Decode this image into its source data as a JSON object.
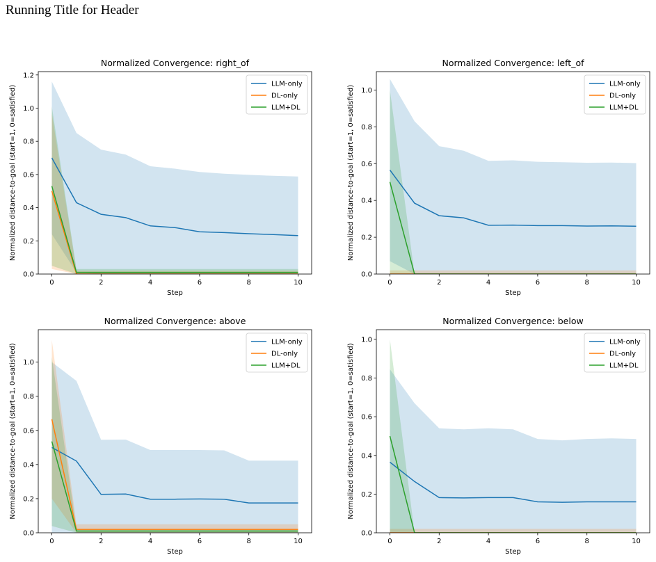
{
  "running_title": "Running Title for Header",
  "colors": {
    "LLM-only": "#1f77b4",
    "DL-only": "#ff7f0e",
    "LLM+DL": "#2ca02c"
  },
  "chart_data": [
    {
      "type": "line",
      "title": "Normalized Convergence: right_of",
      "xlabel": "Step",
      "ylabel": "Normalized distance-to-goal (start=1, 0=satisfied)",
      "xlim": [
        -0.55,
        10.55
      ],
      "ylim": [
        0,
        1.22
      ],
      "xticks": [
        0,
        2,
        4,
        6,
        8,
        10
      ],
      "xtick_labels": [
        "0",
        "2",
        "4",
        "6",
        "8",
        "10"
      ],
      "yticks": [
        0.0,
        0.2,
        0.4,
        0.6,
        0.8,
        1.0,
        1.2
      ],
      "ytick_labels": [
        "0.0",
        "0.2",
        "0.4",
        "0.6",
        "0.8",
        "1.0",
        "1.2"
      ],
      "legend": "upper-right",
      "x": [
        0,
        1,
        2,
        3,
        4,
        5,
        6,
        7,
        8,
        9,
        10
      ],
      "series": [
        {
          "name": "LLM-only",
          "values": [
            0.7,
            0.43,
            0.36,
            0.34,
            0.29,
            0.28,
            0.255,
            0.25,
            0.243,
            0.238,
            0.232
          ],
          "lower": [
            0.24,
            0.01,
            0.0,
            0.0,
            0.0,
            0.0,
            0.0,
            0.0,
            0.0,
            0.0,
            0.0
          ],
          "upper": [
            1.16,
            0.85,
            0.75,
            0.72,
            0.65,
            0.635,
            0.615,
            0.605,
            0.598,
            0.592,
            0.588
          ]
        },
        {
          "name": "DL-only",
          "values": [
            0.5,
            0.0,
            0.0,
            0.0,
            0.0,
            0.0,
            0.0,
            0.0,
            0.0,
            0.0,
            0.0
          ],
          "lower": [
            0.03,
            0.0,
            0.0,
            0.0,
            0.0,
            0.0,
            0.0,
            0.0,
            0.0,
            0.0,
            0.0
          ],
          "upper": [
            0.97,
            0.02,
            0.02,
            0.02,
            0.02,
            0.02,
            0.02,
            0.02,
            0.02,
            0.02,
            0.02
          ]
        },
        {
          "name": "LLM+DL",
          "values": [
            0.53,
            0.01,
            0.01,
            0.01,
            0.01,
            0.01,
            0.01,
            0.01,
            0.01,
            0.01,
            0.01
          ],
          "lower": [
            0.05,
            0.0,
            0.0,
            0.0,
            0.0,
            0.0,
            0.0,
            0.0,
            0.0,
            0.0,
            0.0
          ],
          "upper": [
            1.01,
            0.03,
            0.03,
            0.03,
            0.03,
            0.03,
            0.03,
            0.03,
            0.03,
            0.03,
            0.03
          ]
        }
      ]
    },
    {
      "type": "line",
      "title": "Normalized Convergence: left_of",
      "xlabel": "Step",
      "ylabel": "Normalized distance-to-goal (start=1, 0=satisfied)",
      "xlim": [
        -0.55,
        10.55
      ],
      "ylim": [
        0,
        1.1
      ],
      "xticks": [
        0,
        2,
        4,
        6,
        8,
        10
      ],
      "xtick_labels": [
        "0",
        "2",
        "4",
        "6",
        "8",
        "10"
      ],
      "yticks": [
        0.0,
        0.2,
        0.4,
        0.6,
        0.8,
        1.0
      ],
      "ytick_labels": [
        "0.0",
        "0.2",
        "0.4",
        "0.6",
        "0.8",
        "1.0"
      ],
      "legend": "upper-right",
      "x": [
        0,
        1,
        2,
        3,
        4,
        5,
        6,
        7,
        8,
        9,
        10
      ],
      "series": [
        {
          "name": "LLM-only",
          "values": [
            0.565,
            0.385,
            0.317,
            0.305,
            0.265,
            0.266,
            0.263,
            0.263,
            0.261,
            0.262,
            0.26
          ],
          "lower": [
            0.07,
            0.0,
            0.0,
            0.0,
            0.0,
            0.0,
            0.0,
            0.0,
            0.0,
            0.0,
            0.0
          ],
          "upper": [
            1.06,
            0.83,
            0.695,
            0.67,
            0.615,
            0.618,
            0.61,
            0.608,
            0.605,
            0.606,
            0.603
          ]
        },
        {
          "name": "DL-only",
          "values": [
            0.0,
            0.0,
            0.0,
            0.0,
            0.0,
            0.0,
            0.0,
            0.0,
            0.0,
            0.0,
            0.0
          ],
          "lower": [
            0.0,
            0.0,
            0.0,
            0.0,
            0.0,
            0.0,
            0.0,
            0.0,
            0.0,
            0.0,
            0.0
          ],
          "upper": [
            0.02,
            0.02,
            0.02,
            0.02,
            0.02,
            0.02,
            0.02,
            0.02,
            0.02,
            0.02,
            0.02
          ]
        },
        {
          "name": "LLM+DL",
          "values": [
            0.5,
            0.0,
            0.0,
            0.0,
            0.0,
            0.0,
            0.0,
            0.0,
            0.0,
            0.0,
            0.0
          ],
          "lower": [
            0.0,
            0.0,
            0.0,
            0.0,
            0.0,
            0.0,
            0.0,
            0.0,
            0.0,
            0.0,
            0.0
          ],
          "upper": [
            1.0,
            0.0,
            0.0,
            0.0,
            0.0,
            0.0,
            0.0,
            0.0,
            0.0,
            0.0,
            0.0
          ]
        }
      ]
    },
    {
      "type": "line",
      "title": "Normalized Convergence: above",
      "xlabel": "Step",
      "ylabel": "Normalized distance-to-goal (start=1, 0=satisfied)",
      "xlim": [
        -0.55,
        10.55
      ],
      "ylim": [
        0,
        1.19
      ],
      "xticks": [
        0,
        2,
        4,
        6,
        8,
        10
      ],
      "xtick_labels": [
        "0",
        "2",
        "4",
        "6",
        "8",
        "10"
      ],
      "yticks": [
        0.0,
        0.2,
        0.4,
        0.6,
        0.8,
        1.0
      ],
      "ytick_labels": [
        "0.0",
        "0.2",
        "0.4",
        "0.6",
        "0.8",
        "1.0"
      ],
      "legend": "upper-right",
      "x": [
        0,
        1,
        2,
        3,
        4,
        5,
        6,
        7,
        8,
        9,
        10
      ],
      "series": [
        {
          "name": "LLM-only",
          "values": [
            0.5,
            0.42,
            0.225,
            0.227,
            0.197,
            0.197,
            0.198,
            0.197,
            0.175,
            0.175,
            0.175
          ],
          "lower": [
            0.0,
            0.0,
            0.0,
            0.0,
            0.0,
            0.0,
            0.0,
            0.0,
            0.0,
            0.0,
            0.0
          ],
          "upper": [
            1.0,
            0.89,
            0.545,
            0.546,
            0.485,
            0.485,
            0.485,
            0.483,
            0.423,
            0.423,
            0.423
          ]
        },
        {
          "name": "DL-only",
          "values": [
            0.665,
            0.02,
            0.02,
            0.02,
            0.02,
            0.02,
            0.02,
            0.02,
            0.02,
            0.02,
            0.02
          ],
          "lower": [
            0.2,
            0.0,
            0.0,
            0.0,
            0.0,
            0.0,
            0.0,
            0.0,
            0.0,
            0.0,
            0.0
          ],
          "upper": [
            1.13,
            0.05,
            0.05,
            0.05,
            0.05,
            0.05,
            0.05,
            0.05,
            0.05,
            0.05,
            0.05
          ]
        },
        {
          "name": "LLM+DL",
          "values": [
            0.535,
            0.01,
            0.01,
            0.01,
            0.01,
            0.01,
            0.01,
            0.01,
            0.01,
            0.01,
            0.01
          ],
          "lower": [
            0.04,
            0.0,
            0.0,
            0.0,
            0.0,
            0.0,
            0.0,
            0.0,
            0.0,
            0.0,
            0.0
          ],
          "upper": [
            1.03,
            0.02,
            0.02,
            0.02,
            0.02,
            0.02,
            0.02,
            0.02,
            0.02,
            0.02,
            0.02
          ]
        }
      ]
    },
    {
      "type": "line",
      "title": "Normalized Convergence: below",
      "xlabel": "Step",
      "ylabel": "Normalized distance-to-goal (start=1, 0=satisfied)",
      "xlim": [
        -0.55,
        10.55
      ],
      "ylim": [
        0,
        1.05
      ],
      "xticks": [
        0,
        2,
        4,
        6,
        8,
        10
      ],
      "xtick_labels": [
        "0",
        "2",
        "4",
        "6",
        "8",
        "10"
      ],
      "yticks": [
        0.0,
        0.2,
        0.4,
        0.6,
        0.8,
        1.0
      ],
      "ytick_labels": [
        "0.0",
        "0.2",
        "0.4",
        "0.6",
        "0.8",
        "1.0"
      ],
      "legend": "upper-right",
      "x": [
        0,
        1,
        2,
        3,
        4,
        5,
        6,
        7,
        8,
        9,
        10
      ],
      "series": [
        {
          "name": "LLM-only",
          "values": [
            0.365,
            0.265,
            0.182,
            0.18,
            0.182,
            0.182,
            0.16,
            0.158,
            0.16,
            0.16,
            0.16
          ],
          "lower": [
            0.0,
            0.0,
            0.0,
            0.0,
            0.0,
            0.0,
            0.0,
            0.0,
            0.0,
            0.0,
            0.0
          ],
          "upper": [
            0.845,
            0.67,
            0.54,
            0.535,
            0.54,
            0.535,
            0.485,
            0.478,
            0.485,
            0.488,
            0.485
          ]
        },
        {
          "name": "DL-only",
          "values": [
            0.0,
            0.0,
            0.0,
            0.0,
            0.0,
            0.0,
            0.0,
            0.0,
            0.0,
            0.0,
            0.0
          ],
          "lower": [
            0.0,
            0.0,
            0.0,
            0.0,
            0.0,
            0.0,
            0.0,
            0.0,
            0.0,
            0.0,
            0.0
          ],
          "upper": [
            0.02,
            0.02,
            0.02,
            0.02,
            0.02,
            0.02,
            0.02,
            0.02,
            0.02,
            0.02,
            0.02
          ]
        },
        {
          "name": "LLM+DL",
          "values": [
            0.5,
            0.0,
            0.0,
            0.0,
            0.0,
            0.0,
            0.0,
            0.0,
            0.0,
            0.0,
            0.0
          ],
          "lower": [
            0.0,
            0.0,
            0.0,
            0.0,
            0.0,
            0.0,
            0.0,
            0.0,
            0.0,
            0.0,
            0.0
          ],
          "upper": [
            1.0,
            0.0,
            0.0,
            0.0,
            0.0,
            0.0,
            0.0,
            0.0,
            0.0,
            0.0,
            0.0
          ]
        }
      ]
    }
  ]
}
